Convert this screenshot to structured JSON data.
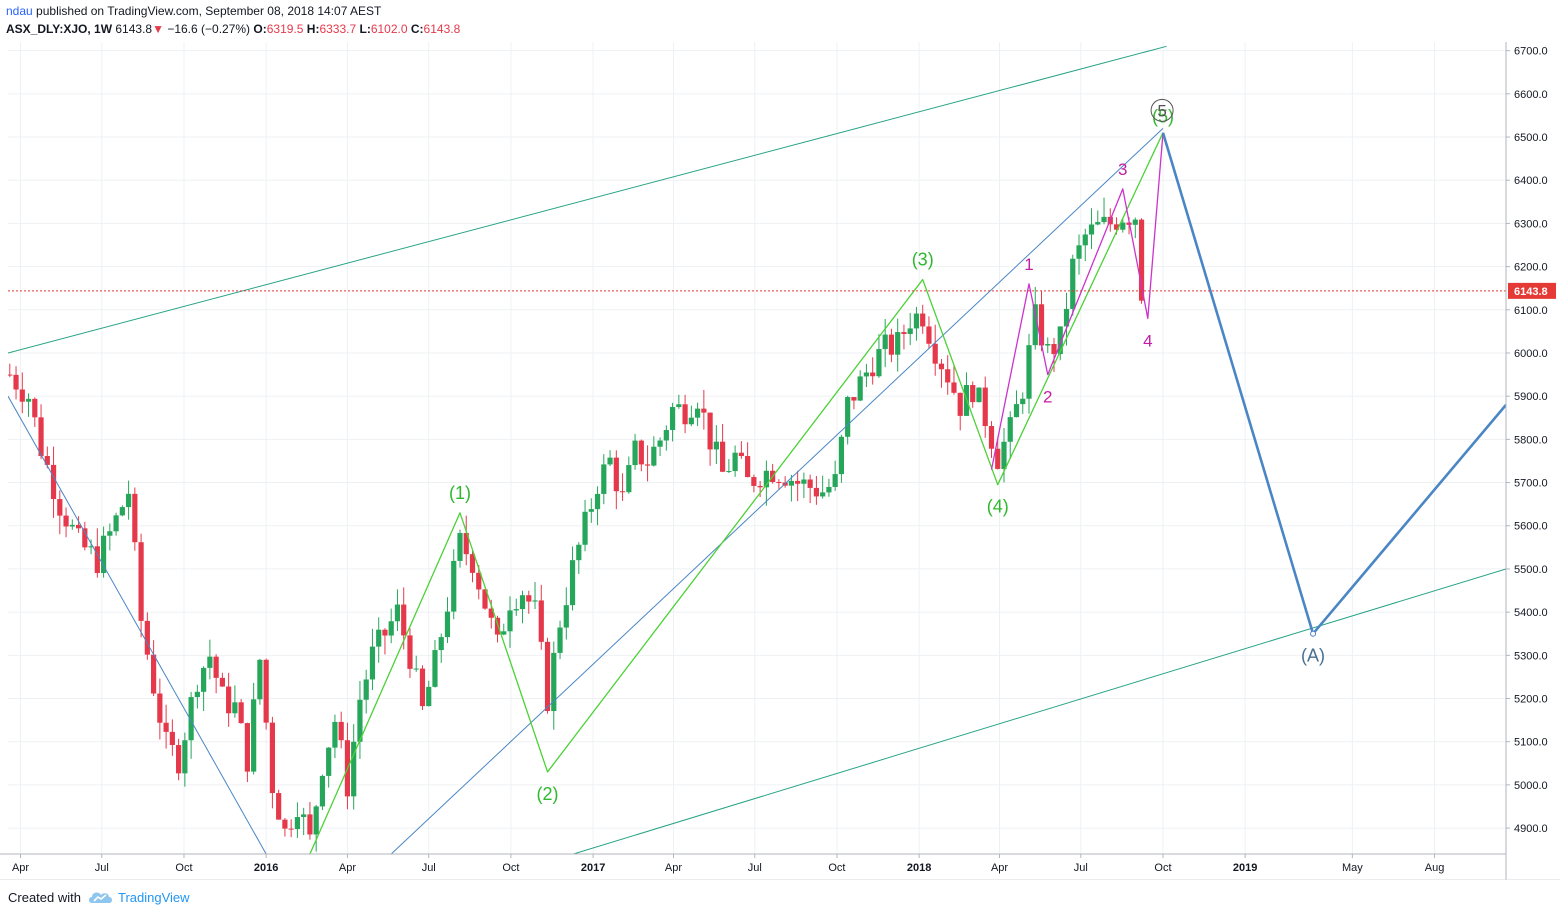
{
  "header": {
    "author": "ndau",
    "published": "published on TradingView.com, September 08, 2018 14:07 AEST",
    "symbol": "ASX_DLY:XJO, 1W",
    "last": "6143.8",
    "change_arrow": "▼",
    "change": "−16.6 (−0.27%)",
    "o_label": "O:",
    "o": "6319.5",
    "h_label": "H:",
    "h": "6333.7",
    "l_label": "L:",
    "l": "6102.0",
    "c_label": "C:",
    "c": "6143.8"
  },
  "footer": {
    "created_with": "Created with",
    "brand": "TradingView"
  },
  "colors": {
    "up": "#26a65b",
    "down": "#e5394b",
    "green_wave": "#4cd137",
    "magenta_wave": "#cc33cc",
    "blue_line": "#4a86c5",
    "teal_channel": "#26a385",
    "price_line": "#e53935",
    "grid": "#eef1f4"
  },
  "chart_data": {
    "type": "candlestick",
    "timeframe": "1W",
    "ylim": [
      4840,
      6720
    ],
    "grid": true,
    "y_ticks": [
      4900,
      5000,
      5100,
      5200,
      5300,
      5400,
      5500,
      5600,
      5700,
      5800,
      5900,
      6000,
      6100,
      6200,
      6300,
      6400,
      6500,
      6600,
      6700
    ],
    "y_tick_labels": [
      "4900.0",
      "5000.0",
      "5100.0",
      "5200.0",
      "5300.0",
      "5400.0",
      "5500.0",
      "5600.0",
      "5700.0",
      "5800.0",
      "5900.0",
      "6000.0",
      "6100.0",
      "6200.0",
      "6300.0",
      "6400.0",
      "6500.0",
      "6600.0",
      "6700.0"
    ],
    "x_ticks": [
      {
        "label": "Apr",
        "date": "2015-04-01",
        "bold": false
      },
      {
        "label": "Jul",
        "date": "2015-07-01",
        "bold": false
      },
      {
        "label": "Oct",
        "date": "2015-10-01",
        "bold": false
      },
      {
        "label": "2016",
        "date": "2016-01-01",
        "bold": true
      },
      {
        "label": "Apr",
        "date": "2016-04-01",
        "bold": false
      },
      {
        "label": "Jul",
        "date": "2016-07-01",
        "bold": false
      },
      {
        "label": "Oct",
        "date": "2016-10-01",
        "bold": false
      },
      {
        "label": "2017",
        "date": "2017-01-01",
        "bold": true
      },
      {
        "label": "Apr",
        "date": "2017-04-01",
        "bold": false
      },
      {
        "label": "Jul",
        "date": "2017-07-01",
        "bold": false
      },
      {
        "label": "Oct",
        "date": "2017-10-01",
        "bold": false
      },
      {
        "label": "2018",
        "date": "2018-01-01",
        "bold": true
      },
      {
        "label": "Apr",
        "date": "2018-04-01",
        "bold": false
      },
      {
        "label": "Jul",
        "date": "2018-07-01",
        "bold": false
      },
      {
        "label": "Oct",
        "date": "2018-10-01",
        "bold": false
      },
      {
        "label": "2019",
        "date": "2019-01-01",
        "bold": true
      },
      {
        "label": "May",
        "date": "2019-05-01",
        "bold": false
      },
      {
        "label": "Aug",
        "date": "2019-08-01",
        "bold": false
      }
    ],
    "x_range": [
      "2015-03-18",
      "2019-10-20"
    ],
    "last_price": 6143.8,
    "last_price_label": "6143.8",
    "close_path": [
      [
        "2015-03-20",
        5950
      ],
      [
        "2015-04-10",
        5900
      ],
      [
        "2015-04-24",
        5780
      ],
      [
        "2015-05-15",
        5650
      ],
      [
        "2015-06-05",
        5560
      ],
      [
        "2015-06-26",
        5520
      ],
      [
        "2015-07-10",
        5580
      ],
      [
        "2015-07-31",
        5680
      ],
      [
        "2015-08-14",
        5380
      ],
      [
        "2015-08-28",
        5230
      ],
      [
        "2015-09-11",
        5090
      ],
      [
        "2015-09-25",
        5060
      ],
      [
        "2015-10-16",
        5250
      ],
      [
        "2015-10-30",
        5300
      ],
      [
        "2015-11-13",
        5200
      ],
      [
        "2015-11-27",
        5180
      ],
      [
        "2015-12-11",
        5060
      ],
      [
        "2015-12-25",
        5290
      ],
      [
        "2016-01-08",
        5000
      ],
      [
        "2016-01-22",
        4890
      ],
      [
        "2016-02-05",
        4960
      ],
      [
        "2016-02-19",
        4870
      ],
      [
        "2016-03-04",
        5050
      ],
      [
        "2016-03-18",
        5150
      ],
      [
        "2016-04-01",
        5000
      ],
      [
        "2016-04-15",
        5200
      ],
      [
        "2016-04-29",
        5300
      ],
      [
        "2016-05-13",
        5350
      ],
      [
        "2016-05-27",
        5400
      ],
      [
        "2016-06-10",
        5300
      ],
      [
        "2016-06-24",
        5170
      ],
      [
        "2016-07-08",
        5280
      ],
      [
        "2016-07-22",
        5420
      ],
      [
        "2016-08-05",
        5560
      ],
      [
        "2016-08-19",
        5520
      ],
      [
        "2016-09-02",
        5420
      ],
      [
        "2016-09-16",
        5320
      ],
      [
        "2016-09-30",
        5430
      ],
      [
        "2016-10-14",
        5450
      ],
      [
        "2016-10-28",
        5400
      ],
      [
        "2016-11-11",
        5200
      ],
      [
        "2016-11-25",
        5380
      ],
      [
        "2016-12-09",
        5500
      ],
      [
        "2016-12-23",
        5600
      ],
      [
        "2017-01-06",
        5700
      ],
      [
        "2017-01-20",
        5750
      ],
      [
        "2017-02-03",
        5660
      ],
      [
        "2017-02-17",
        5770
      ],
      [
        "2017-03-03",
        5750
      ],
      [
        "2017-03-17",
        5800
      ],
      [
        "2017-03-31",
        5870
      ],
      [
        "2017-04-14",
        5870
      ],
      [
        "2017-04-28",
        5900
      ],
      [
        "2017-05-12",
        5800
      ],
      [
        "2017-05-26",
        5720
      ],
      [
        "2017-06-09",
        5760
      ],
      [
        "2017-06-23",
        5700
      ],
      [
        "2017-07-07",
        5720
      ],
      [
        "2017-07-21",
        5730
      ],
      [
        "2017-08-04",
        5720
      ],
      [
        "2017-08-18",
        5700
      ],
      [
        "2017-09-01",
        5690
      ],
      [
        "2017-09-15",
        5680
      ],
      [
        "2017-09-29",
        5700
      ],
      [
        "2017-10-13",
        5880
      ],
      [
        "2017-10-27",
        5930
      ],
      [
        "2017-11-10",
        5980
      ],
      [
        "2017-11-24",
        6010
      ],
      [
        "2017-12-08",
        6020
      ],
      [
        "2017-12-22",
        6080
      ],
      [
        "2018-01-05",
        6090
      ],
      [
        "2018-01-19",
        6010
      ],
      [
        "2018-02-02",
        5950
      ],
      [
        "2018-02-16",
        5880
      ],
      [
        "2018-03-02",
        5920
      ],
      [
        "2018-03-16",
        5850
      ],
      [
        "2018-03-30",
        5760
      ],
      [
        "2018-04-13",
        5820
      ],
      [
        "2018-04-27",
        5920
      ],
      [
        "2018-05-11",
        6080
      ],
      [
        "2018-05-25",
        6000
      ],
      [
        "2018-06-08",
        6030
      ],
      [
        "2018-06-22",
        6200
      ],
      [
        "2018-07-06",
        6270
      ],
      [
        "2018-07-20",
        6290
      ],
      [
        "2018-08-03",
        6300
      ],
      [
        "2018-08-17",
        6320
      ],
      [
        "2018-08-31",
        6320
      ],
      [
        "2018-09-07",
        6143.8
      ]
    ],
    "wave_labels": [
      {
        "text": "(1)",
        "date": "2016-08-05",
        "price": 5630,
        "series": "primary"
      },
      {
        "text": "(2)",
        "date": "2016-11-11",
        "price": 5030,
        "series": "primary"
      },
      {
        "text": "(3)",
        "date": "2018-01-05",
        "price": 6170,
        "series": "primary"
      },
      {
        "text": "(4)",
        "date": "2018-03-30",
        "price": 5695,
        "series": "primary"
      },
      {
        "text": "(5)",
        "date": "2018-10-01",
        "price": 6510,
        "series": "primary"
      },
      {
        "text": "1",
        "date": "2018-05-04",
        "price": 6160,
        "series": "minor"
      },
      {
        "text": "2",
        "date": "2018-05-25",
        "price": 5950,
        "series": "minor"
      },
      {
        "text": "3",
        "date": "2018-08-17",
        "price": 6380,
        "series": "minor"
      },
      {
        "text": "4",
        "date": "2018-09-14",
        "price": 6080,
        "series": "minor"
      },
      {
        "text": "5",
        "date": "2018-09-30",
        "price": 6520,
        "series": "cycle"
      },
      {
        "text": "(A)",
        "date": "2019-03-18",
        "price": 5350,
        "series": "projection"
      }
    ],
    "primary_wave_path": [
      [
        "2016-02-19",
        4840
      ],
      [
        "2016-08-05",
        5630
      ],
      [
        "2016-11-11",
        5030
      ],
      [
        "2018-01-05",
        6170
      ],
      [
        "2018-03-30",
        5695
      ],
      [
        "2018-10-01",
        6510
      ]
    ],
    "minor_wave_path": [
      [
        "2018-03-23",
        5730
      ],
      [
        "2018-05-04",
        6160
      ],
      [
        "2018-05-25",
        5950
      ],
      [
        "2018-08-17",
        6380
      ],
      [
        "2018-09-14",
        6080
      ],
      [
        "2018-10-01",
        6510
      ]
    ],
    "projection_path": [
      [
        "2018-10-01",
        6510
      ],
      [
        "2019-03-18",
        5350
      ],
      [
        "2019-10-20",
        5880
      ]
    ],
    "blue_trendlines": [
      [
        [
          "2015-03-18",
          5900
        ],
        [
          "2016-01-01",
          4840
        ]
      ],
      [
        [
          "2016-05-20",
          4840
        ],
        [
          "2018-10-01",
          6520
        ]
      ]
    ],
    "channel_lines": [
      [
        [
          "2015-03-18",
          6000
        ],
        [
          "2018-10-05",
          6710
        ]
      ],
      [
        [
          "2016-12-10",
          4840
        ],
        [
          "2019-10-20",
          5500
        ]
      ]
    ]
  }
}
